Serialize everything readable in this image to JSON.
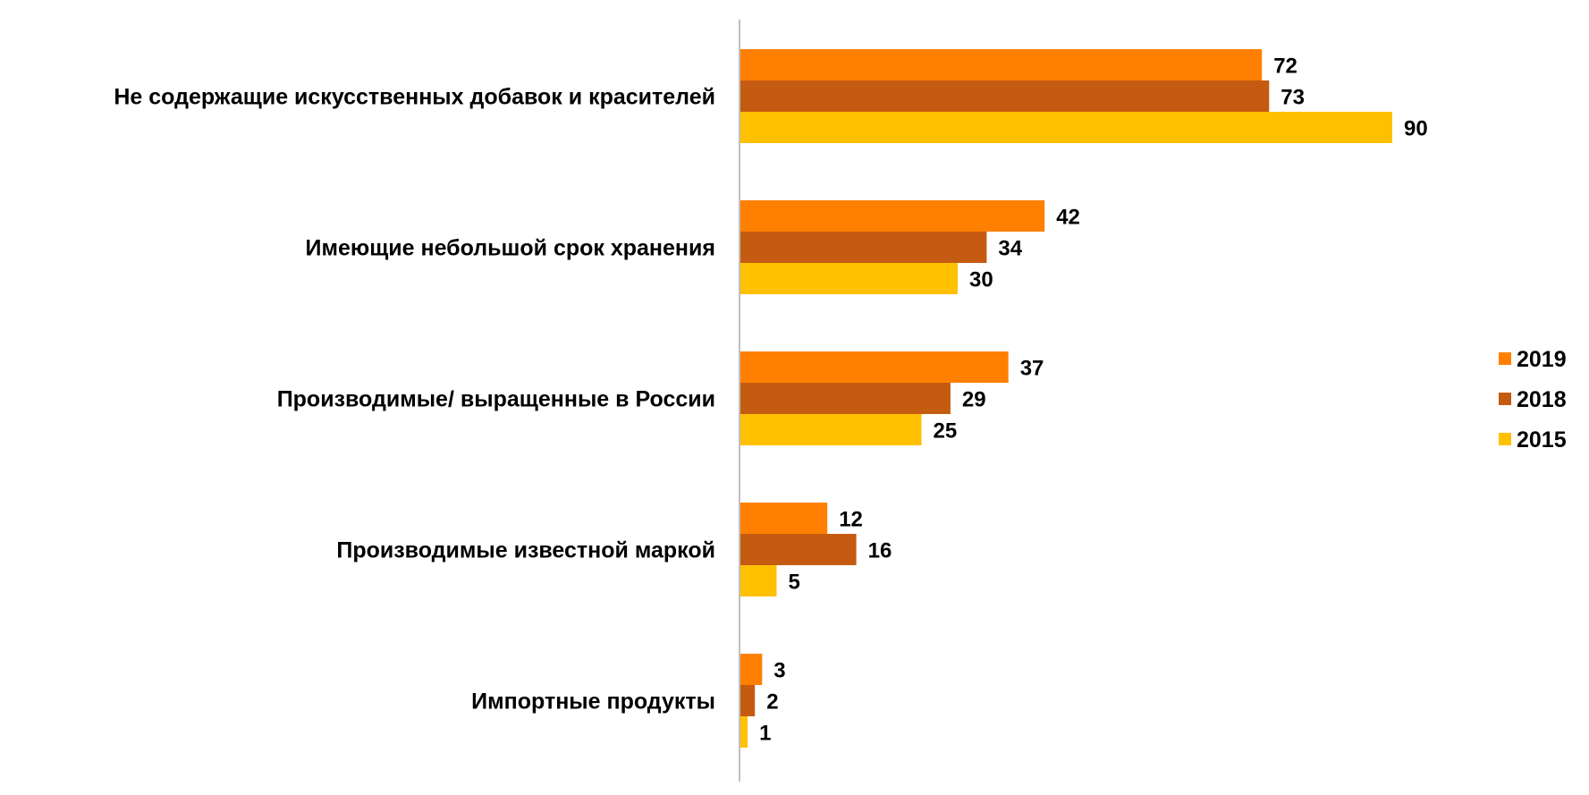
{
  "chart_data": {
    "type": "bar",
    "orientation": "horizontal",
    "categories": [
      "Не содержащие искусственных добавок и красителей",
      "Имеющие небольшой срок хранения",
      "Производимые/ выращенные  в России",
      "Производимые известной маркой",
      "Импортные продукты"
    ],
    "series": [
      {
        "name": "2019",
        "color": "#FF8000",
        "values": [
          72,
          42,
          37,
          12,
          3
        ]
      },
      {
        "name": "2018",
        "color": "#C55A11",
        "values": [
          73,
          34,
          29,
          16,
          2
        ]
      },
      {
        "name": "2015",
        "color": "#FFC000",
        "values": [
          90,
          30,
          25,
          5,
          1
        ]
      }
    ],
    "xlim": [
      0,
      100
    ],
    "grid": false,
    "data_labels": true,
    "legend_position": "right"
  }
}
